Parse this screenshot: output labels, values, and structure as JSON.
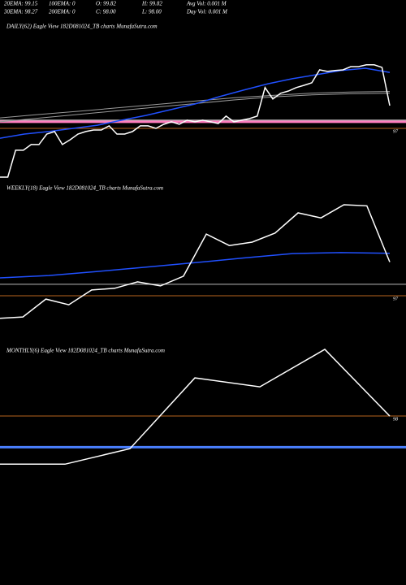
{
  "stats": [
    [
      "20EMA: 99.15",
      "100EMA: 0",
      "O: 99.82",
      "H: 99.82",
      "Avg Vol: 0.001 M"
    ],
    [
      "30EMA: 98.27",
      "200EMA: 0",
      "C: 98.00",
      "L: 98.00",
      "Day Vol: 0.001 M"
    ]
  ],
  "chart_data": [
    {
      "type": "line",
      "title": "DAILY(62) Eagle  View  182D081024_TB charts MunafaSutra.com",
      "ylim": [
        94.61,
        101.21
      ],
      "levels": [
        {
          "value": 97,
          "color": "#b8641e",
          "labelled": true
        },
        {
          "value": 97.29,
          "color": "#ff7fbf",
          "width": 3
        },
        {
          "value": 97.36,
          "color": "#dddddd",
          "width": 1
        }
      ],
      "series": [
        {
          "color": "#9a9a9a",
          "width": 1,
          "values": [
            97.46,
            97.61,
            97.75,
            97.9,
            98.05,
            98.2,
            98.34,
            98.45,
            98.55,
            98.6,
            98.62
          ]
        },
        {
          "color": "#9a9a9a",
          "width": 1,
          "values": [
            97.29,
            97.45,
            97.61,
            97.77,
            97.93,
            98.09,
            98.25,
            98.38,
            98.47,
            98.52,
            98.54
          ]
        },
        {
          "color": "#2050ff",
          "width": 1.5,
          "values": [
            96.57,
            96.75,
            96.86,
            97.0,
            97.14,
            97.36,
            97.57,
            97.82,
            98.07,
            98.39,
            98.68,
            98.96,
            99.18,
            99.36,
            99.54,
            99.64,
            99.46
          ]
        },
        {
          "color": "#ffffff",
          "width": 1.5,
          "values": [
            94.86,
            94.86,
            96.04,
            96.04,
            96.29,
            96.29,
            96.75,
            96.86,
            96.29,
            96.5,
            96.75,
            96.86,
            96.93,
            96.93,
            97.11,
            96.75,
            96.75,
            96.86,
            97.11,
            97.11,
            97.0,
            97.18,
            97.29,
            97.18,
            97.36,
            97.29,
            97.36,
            97.29,
            97.21,
            97.54,
            97.29,
            97.36,
            97.43,
            97.54,
            98.79,
            98.29,
            98.54,
            98.64,
            98.79,
            98.89,
            99.0,
            99.57,
            99.5,
            99.54,
            99.57,
            99.71,
            99.71,
            99.79,
            99.79,
            99.68,
            98.0
          ]
        }
      ]
    },
    {
      "type": "line",
      "title": "WEEKLY(18) Eagle  View  182D081024_TB charts MunafaSutra.com",
      "ylim": [
        96.13,
        99.99
      ],
      "levels": [
        {
          "value": 97,
          "color": "#b8641e",
          "labelled": true
        },
        {
          "value": 97.34,
          "color": "#bbbbbb",
          "width": 1
        }
      ],
      "series": [
        {
          "color": "#2050ff",
          "width": 1.5,
          "values": [
            97.53,
            97.6,
            97.72,
            97.85,
            97.98,
            98.12,
            98.25,
            98.28,
            98.26
          ]
        },
        {
          "color": "#ffffff",
          "width": 1.5,
          "values": [
            96.33,
            96.37,
            96.9,
            96.73,
            97.17,
            97.22,
            97.41,
            97.29,
            97.58,
            98.83,
            98.49,
            98.59,
            98.86,
            99.46,
            99.31,
            99.7,
            99.67,
            98.0
          ]
        }
      ]
    },
    {
      "type": "line",
      "title": "MONTHLY(6) Eagle  View  182D081024_TB charts MunafaSutra.com",
      "ylim": [
        96.07,
        100.02
      ],
      "levels": [
        {
          "value": 98,
          "color": "#b8641e",
          "labelled": true
        },
        {
          "value": 97.16,
          "color": "#4a7fff",
          "width": 3
        }
      ],
      "series": [
        {
          "color": "#ffffff",
          "width": 1.5,
          "values": [
            96.7,
            96.7,
            97.12,
            99.03,
            98.79,
            99.8,
            98.0
          ]
        }
      ]
    }
  ]
}
